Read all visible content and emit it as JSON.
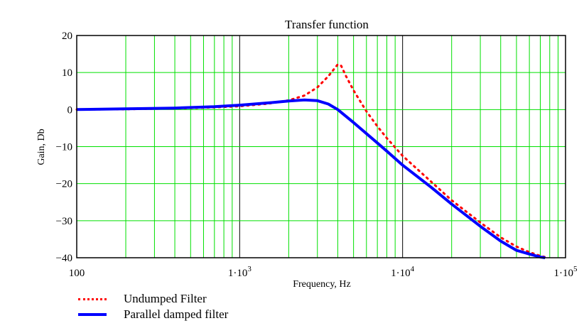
{
  "chart_data": {
    "type": "line",
    "title": "Transfer function",
    "xlabel": "Frequency, Hz",
    "ylabel": "Gain, Db",
    "xscale": "log",
    "xlim": [
      100,
      100000
    ],
    "ylim": [
      -40,
      20
    ],
    "x_tick_labels": [
      "100",
      "1·10^3",
      "1·10^4",
      "1·10^5"
    ],
    "x_ticks": [
      100,
      1000,
      10000,
      100000
    ],
    "y_ticks": [
      20,
      10,
      0,
      -10,
      -20,
      -30,
      -40
    ],
    "y_tick_labels": [
      "20",
      "10",
      "0",
      "−10",
      "−20",
      "−30",
      "−40"
    ],
    "grid": true,
    "grid_color": "#00e000",
    "legend_position": "bottom-left, below plot",
    "series": [
      {
        "name": "Undumped Filter",
        "color": "#ff0000",
        "style": "dotted",
        "x": [
          100,
          200,
          400,
          700,
          1000,
          1500,
          2000,
          2500,
          3000,
          3500,
          4000,
          4200,
          4500,
          5000,
          6000,
          7000,
          8000,
          10000,
          15000,
          20000,
          30000,
          40000,
          50000,
          60000,
          70000,
          78000
        ],
        "y": [
          0,
          0.1,
          0.3,
          0.6,
          0.9,
          1.6,
          2.5,
          3.8,
          6.0,
          9.0,
          12.2,
          11.8,
          9.0,
          5.2,
          -0.5,
          -4.5,
          -7.7,
          -12.5,
          -19.5,
          -24.5,
          -30.5,
          -34.5,
          -37.0,
          -38.5,
          -39.5,
          -40
        ]
      },
      {
        "name": "Parallel damped filter",
        "color": "#0000ff",
        "style": "solid",
        "x": [
          100,
          200,
          400,
          700,
          1000,
          1500,
          2000,
          2500,
          3000,
          3500,
          4000,
          5000,
          6000,
          7000,
          8000,
          10000,
          15000,
          20000,
          30000,
          40000,
          50000,
          60000,
          70000,
          75000
        ],
        "y": [
          0,
          0.2,
          0.4,
          0.8,
          1.2,
          1.8,
          2.3,
          2.6,
          2.4,
          1.5,
          0,
          -3.5,
          -6.5,
          -9.0,
          -11.2,
          -15.0,
          -21.0,
          -25.5,
          -31.5,
          -35.5,
          -38.0,
          -39.0,
          -39.8,
          -40
        ]
      }
    ]
  },
  "legend": {
    "items": [
      {
        "label": "Undumped Filter"
      },
      {
        "label": "Parallel damped filter"
      }
    ]
  }
}
